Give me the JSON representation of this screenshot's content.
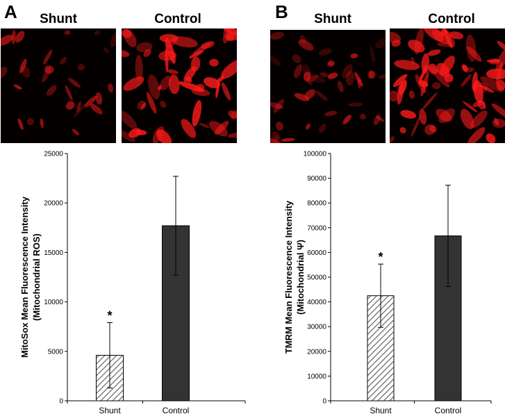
{
  "panels": [
    {
      "letter": "A",
      "image_labels": [
        "Shunt",
        "Control"
      ],
      "chart_data": {
        "type": "bar",
        "categories": [
          "Shunt",
          "Control"
        ],
        "values": [
          4600,
          17700
        ],
        "error": [
          3300,
          5000
        ],
        "bar_styles": [
          "hatched",
          "solid"
        ],
        "significance": [
          "*",
          ""
        ],
        "ylabel_line1": "MitoSox Mean Fluorescence Intensity",
        "ylabel_line2": "(Mitochondrial ROS)",
        "ylim": [
          0,
          25000
        ],
        "yticks": [
          0,
          5000,
          10000,
          15000,
          20000,
          25000
        ],
        "grid": false
      }
    },
    {
      "letter": "B",
      "image_labels": [
        "Shunt",
        "Control"
      ],
      "chart_data": {
        "type": "bar",
        "categories": [
          "Shunt",
          "Control"
        ],
        "values": [
          42500,
          66700
        ],
        "error": [
          12800,
          20500
        ],
        "bar_styles": [
          "hatched",
          "solid"
        ],
        "significance": [
          "*",
          ""
        ],
        "ylabel_line1": "TMRM Mean Fluorescence Intensity",
        "ylabel_line2": "(Mitochondrial Ψ)",
        "ylim": [
          0,
          100000
        ],
        "yticks": [
          0,
          10000,
          20000,
          30000,
          40000,
          50000,
          60000,
          70000,
          80000,
          90000,
          100000
        ],
        "grid": false
      }
    }
  ],
  "colors": {
    "bar_solid": "#333333",
    "hatch_line": "#555555",
    "micrograph_bg": "#050000",
    "fluorescence": "#ff1a1a"
  }
}
